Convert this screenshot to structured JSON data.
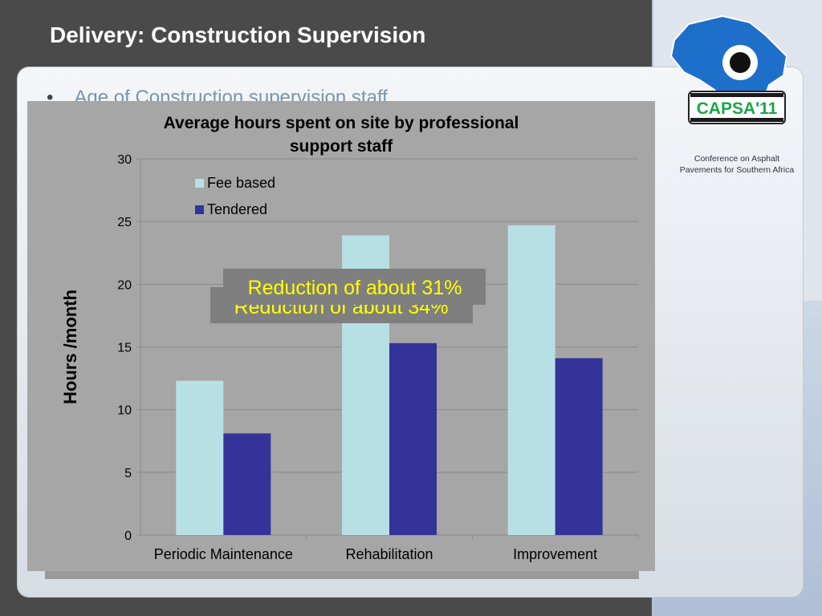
{
  "slide": {
    "title": "Delivery: Construction Supervision",
    "bullet_text": "Age of Construction supervision staff",
    "conference_line1": "Conference on Asphalt",
    "conference_line2": "Pavements for Southern Africa",
    "logo_text": "CAPSA'11"
  },
  "chart_data": {
    "type": "bar",
    "title_line1": "Average hours spent on site by professional",
    "title_line2": "support staff",
    "xlabel": "",
    "ylabel": "Hours /month",
    "ylim": [
      0,
      30
    ],
    "yticks": [
      "0",
      "5",
      "10",
      "15",
      "20",
      "25",
      "30"
    ],
    "categories": [
      "Periodic Maintenance",
      "Rehabilitation",
      "Improvement"
    ],
    "series": [
      {
        "name": "Fee based",
        "color": "#b7e0e4",
        "values": [
          12.3,
          23.9,
          24.7
        ]
      },
      {
        "name": "Tendered",
        "color": "#333399",
        "values": [
          8.1,
          15.3,
          14.1
        ]
      }
    ],
    "grid": true,
    "legend_position": "top-left",
    "annotations": [
      {
        "text": "Reduction of about 34%"
      },
      {
        "text": "Reduction of about 31%"
      }
    ]
  },
  "colors": {
    "background": "#4a4a4a",
    "chart_area": "#a6a6a6",
    "annotation_text": "#ffff00",
    "annotation_box": "#7f7f7f"
  }
}
